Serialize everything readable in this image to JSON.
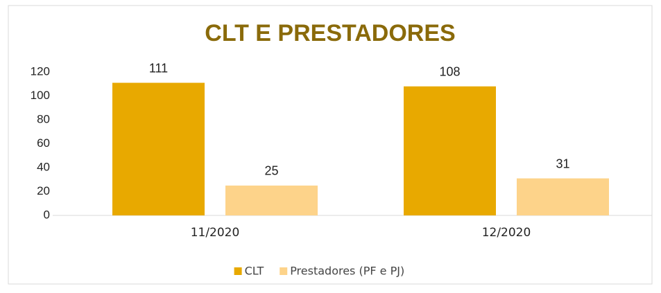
{
  "chart_data": {
    "type": "bar",
    "title": "CLT E PRESTADORES",
    "categories": [
      "11/2020",
      "12/2020"
    ],
    "series": [
      {
        "name": "CLT",
        "color": "#e8a900",
        "values": [
          111,
          108
        ]
      },
      {
        "name": "Prestadores (PF e PJ)",
        "color": "#fdd38a",
        "values": [
          25,
          31
        ]
      }
    ],
    "ylim": [
      0,
      120
    ],
    "yticks": [
      0,
      20,
      40,
      60,
      80,
      100,
      120
    ],
    "grid": false,
    "legend": "bottom",
    "title_color": "#8a6a0a"
  }
}
